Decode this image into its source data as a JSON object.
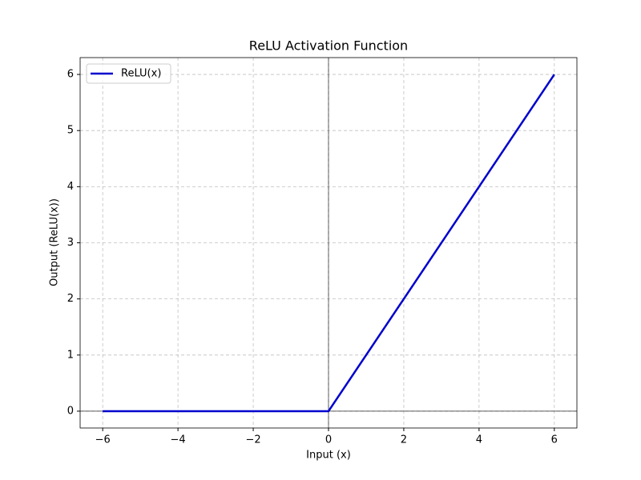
{
  "chart_data": {
    "type": "line",
    "title": "ReLU Activation Function",
    "x_label": "Input (x)",
    "y_label": "Output (ReLU(x))",
    "x": [
      -6,
      0,
      6
    ],
    "series": [
      {
        "name": "ReLU(x)",
        "color": "#0000cd",
        "values": [
          0,
          0,
          6
        ]
      }
    ],
    "xlim": [
      -6.6,
      6.6
    ],
    "ylim": [
      -0.3,
      6.3
    ],
    "xticks": [
      {
        "value": -6,
        "label": "−6"
      },
      {
        "value": -4,
        "label": "−4"
      },
      {
        "value": -2,
        "label": "−2"
      },
      0,
      2,
      4,
      6
    ],
    "yticks": [
      0,
      1,
      2,
      3,
      4,
      5,
      6
    ],
    "grid": true,
    "zero_lines": true,
    "legend": "upper left"
  }
}
